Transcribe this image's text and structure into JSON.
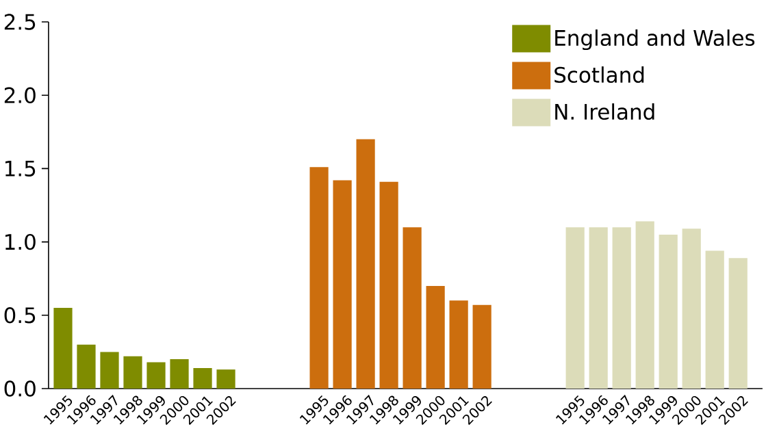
{
  "chart_data": {
    "type": "bar",
    "categories": [
      "1995",
      "1996",
      "1997",
      "1998",
      "1999",
      "2000",
      "2001",
      "2002",
      null,
      null,
      null,
      "1995",
      "1996",
      "1997",
      "1998",
      "1999",
      "2000",
      "2001",
      "2002",
      null,
      null,
      null,
      "1995",
      "1996",
      "1997",
      "1998",
      "1999",
      "2000",
      "2001",
      "2002"
    ],
    "series": [
      {
        "name": "England and Wales",
        "color": "#7f8c00",
        "values": [
          0.55,
          0.3,
          0.25,
          0.22,
          0.18,
          0.2,
          0.14,
          0.13,
          null,
          null,
          null,
          null,
          null,
          null,
          null,
          null,
          null,
          null,
          null,
          null,
          null,
          null,
          null,
          null,
          null,
          null,
          null,
          null,
          null,
          null
        ]
      },
      {
        "name": "Scotland",
        "color": "#cc6e0e",
        "values": [
          null,
          null,
          null,
          null,
          null,
          null,
          null,
          null,
          null,
          null,
          null,
          1.51,
          1.42,
          1.7,
          1.41,
          1.1,
          0.7,
          0.6,
          0.57,
          null,
          null,
          null,
          null,
          null,
          null,
          null,
          null,
          null,
          null,
          null
        ]
      },
      {
        "name": "N. Ireland",
        "color": "#dcdcb9",
        "values": [
          null,
          null,
          null,
          null,
          null,
          null,
          null,
          null,
          null,
          null,
          null,
          null,
          null,
          null,
          null,
          null,
          null,
          null,
          null,
          null,
          null,
          null,
          1.1,
          1.1,
          1.1,
          1.14,
          1.05,
          1.09,
          0.94,
          0.89
        ]
      }
    ],
    "ylim": [
      0,
      2.5
    ],
    "yticks": [
      {
        "value": 0,
        "label": "0.0"
      },
      {
        "value": 0.5,
        "label": "0.5"
      },
      {
        "value": 1,
        "label": "1.0"
      },
      {
        "value": 1.5,
        "label": "1.5"
      },
      {
        "value": 2,
        "label": "2.0"
      },
      {
        "value": 2.5,
        "label": "2.5"
      }
    ],
    "grid": false,
    "legend": "top right"
  }
}
